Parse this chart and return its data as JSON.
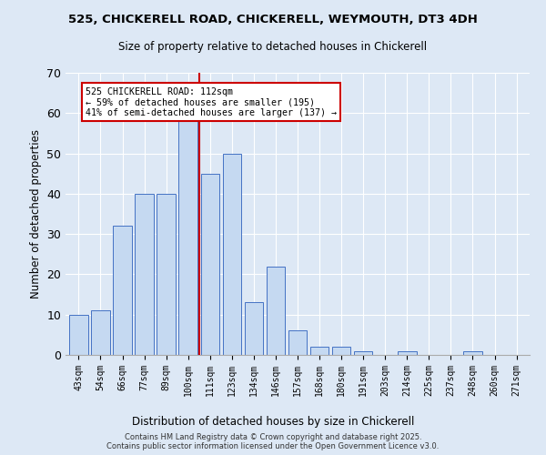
{
  "title_line1": "525, CHICKERELL ROAD, CHICKERELL, WEYMOUTH, DT3 4DH",
  "title_line2": "Size of property relative to detached houses in Chickerell",
  "xlabel": "Distribution of detached houses by size in Chickerell",
  "ylabel": "Number of detached properties",
  "bar_labels": [
    "43sqm",
    "54sqm",
    "66sqm",
    "77sqm",
    "89sqm",
    "100sqm",
    "111sqm",
    "123sqm",
    "134sqm",
    "146sqm",
    "157sqm",
    "168sqm",
    "180sqm",
    "191sqm",
    "203sqm",
    "214sqm",
    "225sqm",
    "237sqm",
    "248sqm",
    "260sqm",
    "271sqm"
  ],
  "bar_values": [
    10,
    11,
    32,
    40,
    40,
    58,
    45,
    50,
    13,
    22,
    6,
    2,
    2,
    1,
    0,
    1,
    0,
    0,
    1,
    0,
    0
  ],
  "bar_color": "#c5d9f1",
  "bar_edge_color": "#4472c4",
  "ylim": [
    0,
    70
  ],
  "yticks": [
    0,
    10,
    20,
    30,
    40,
    50,
    60,
    70
  ],
  "vline_x_index": 6,
  "vline_color": "#cc0000",
  "annotation_text": "525 CHICKERELL ROAD: 112sqm\n← 59% of detached houses are smaller (195)\n41% of semi-detached houses are larger (137) →",
  "annotation_box_color": "#ffffff",
  "annotation_box_edge": "#cc0000",
  "background_color": "#dde8f5",
  "footer_line1": "Contains HM Land Registry data © Crown copyright and database right 2025.",
  "footer_line2": "Contains public sector information licensed under the Open Government Licence v3.0."
}
